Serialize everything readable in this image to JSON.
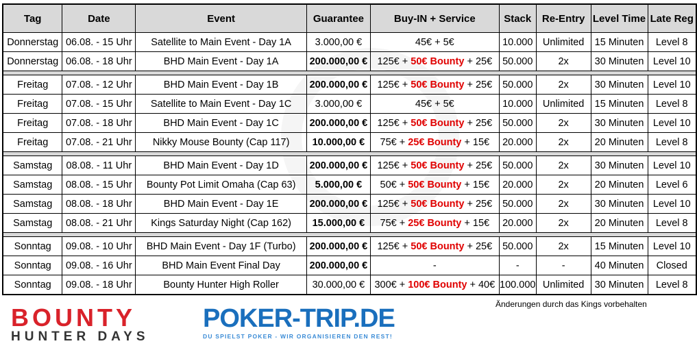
{
  "headers": [
    "Tag",
    "Date",
    "Event",
    "Guarantee",
    "Buy-IN + Service",
    "Stack",
    "Re-Entry",
    "Level Time",
    "Late Reg"
  ],
  "groups": [
    [
      {
        "tag": "Donnerstag",
        "date": "06.08. - 15 Uhr",
        "event": "Satellite to Main Event - Day 1A",
        "guarantee": "3.000,00 €",
        "gbold": false,
        "buyin": "45€ + 5€",
        "bounty": "",
        "service": "",
        "stack": "10.000",
        "reentry": "Unlimited",
        "level": "15 Minuten",
        "late": "Level 8"
      },
      {
        "tag": "Donnerstag",
        "date": "06.08. - 18 Uhr",
        "event": "BHD Main Event - Day 1A",
        "guarantee": "200.000,00 €",
        "gbold": true,
        "buyin": "125€ + ",
        "bounty": "50€ Bounty",
        "service": " + 25€",
        "stack": "50.000",
        "reentry": "2x",
        "level": "30 Minuten",
        "late": "Level 10"
      }
    ],
    [
      {
        "tag": "Freitag",
        "date": "07.08. - 12 Uhr",
        "event": "BHD Main Event - Day 1B",
        "guarantee": "200.000,00 €",
        "gbold": true,
        "buyin": "125€ + ",
        "bounty": "50€ Bounty",
        "service": " + 25€",
        "stack": "50.000",
        "reentry": "2x",
        "level": "30 Minuten",
        "late": "Level 10"
      },
      {
        "tag": "Freitag",
        "date": "07.08. - 15 Uhr",
        "event": "Satellite to Main Event - Day 1C",
        "guarantee": "3.000,00 €",
        "gbold": false,
        "buyin": "45€ + 5€",
        "bounty": "",
        "service": "",
        "stack": "10.000",
        "reentry": "Unlimited",
        "level": "15 Minuten",
        "late": "Level 8"
      },
      {
        "tag": "Freitag",
        "date": "07.08. - 18 Uhr",
        "event": "BHD Main Event - Day 1C",
        "guarantee": "200.000,00 €",
        "gbold": true,
        "buyin": "125€ + ",
        "bounty": "50€ Bounty",
        "service": " + 25€",
        "stack": "50.000",
        "reentry": "2x",
        "level": "30 Minuten",
        "late": "Level 10"
      },
      {
        "tag": "Freitag",
        "date": "07.08. - 21 Uhr",
        "event": "Nikky Mouse Bounty (Cap 117)",
        "guarantee": "10.000,00 €",
        "gbold": true,
        "buyin": "75€ + ",
        "bounty": "25€ Bounty",
        "service": " + 15€",
        "stack": "20.000",
        "reentry": "2x",
        "level": "20 Minuten",
        "late": "Level 8"
      }
    ],
    [
      {
        "tag": "Samstag",
        "date": "08.08. - 11 Uhr",
        "event": "BHD Main Event - Day 1D",
        "guarantee": "200.000,00 €",
        "gbold": true,
        "buyin": "125€ + ",
        "bounty": "50€ Bounty",
        "service": " + 25€",
        "stack": "50.000",
        "reentry": "2x",
        "level": "30 Minuten",
        "late": "Level 10"
      },
      {
        "tag": "Samstag",
        "date": "08.08. - 15 Uhr",
        "event": "Bounty Pot Limit Omaha (Cap 63)",
        "guarantee": "5.000,00 €",
        "gbold": true,
        "buyin": "50€ + ",
        "bounty": "50€ Bounty",
        "service": " + 15€",
        "stack": "20.000",
        "reentry": "2x",
        "level": "20 Minuten",
        "late": "Level 6"
      },
      {
        "tag": "Samstag",
        "date": "08.08. - 18 Uhr",
        "event": "BHD Main Event - Day 1E",
        "guarantee": "200.000,00 €",
        "gbold": true,
        "buyin": "125€ + ",
        "bounty": "50€ Bounty",
        "service": " + 25€",
        "stack": "50.000",
        "reentry": "2x",
        "level": "30 Minuten",
        "late": "Level 10"
      },
      {
        "tag": "Samstag",
        "date": "08.08. - 21 Uhr",
        "event": "Kings Saturday Night (Cap 162)",
        "guarantee": "15.000,00 €",
        "gbold": true,
        "buyin": "75€ + ",
        "bounty": "25€ Bounty",
        "service": " + 15€",
        "stack": "20.000",
        "reentry": "2x",
        "level": "20 Minuten",
        "late": "Level 8"
      }
    ],
    [
      {
        "tag": "Sonntag",
        "date": "09.08. - 10 Uhr",
        "event": "BHD Main Event - Day 1F (Turbo)",
        "guarantee": "200.000,00 €",
        "gbold": true,
        "buyin": "125€ + ",
        "bounty": "50€ Bounty",
        "service": " + 25€",
        "stack": "50.000",
        "reentry": "2x",
        "level": "15 Minuten",
        "late": "Level 10"
      },
      {
        "tag": "Sonntag",
        "date": "09.08. - 16 Uhr",
        "event": "BHD Main Event Final Day",
        "guarantee": "200.000,00 €",
        "gbold": true,
        "buyin": "-",
        "bounty": "",
        "service": "",
        "stack": "-",
        "reentry": "-",
        "level": "40 Minuten",
        "late": "Closed"
      },
      {
        "tag": "Sonntag",
        "date": "09.08. - 18 Uhr",
        "event": "Bounty Hunter High Roller",
        "guarantee": "30.000,00 €",
        "gbold": false,
        "buyin": "300€ + ",
        "bounty": "100€ Bounty",
        "service": " + 40€",
        "stack": "100.000",
        "reentry": "Unlimited",
        "level": "30 Minuten",
        "late": "Level 8"
      }
    ]
  ],
  "note": "Änderungen durch das Kings vorbehalten",
  "logos": {
    "bounty_line1": "BOUNTY",
    "bounty_line2": "HUNTER DAYS",
    "pokertrip": "POKER-TRIP.DE",
    "pokertrip_tagline": "DU SPIELST POKER - WIR ORGANISIEREN DEN REST!"
  },
  "colors": {
    "bounty": "#e00000",
    "header_bg": "#d9d9d9",
    "brand_red": "#d9222a",
    "brand_blue": "#1a6fbd"
  }
}
